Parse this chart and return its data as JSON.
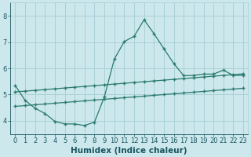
{
  "xlabel": "Humidex (Indice chaleur)",
  "bg_color": "#cce8ec",
  "grid_color": "#aad0d8",
  "line_color": "#2a7a6e",
  "xlim": [
    -0.5,
    23.5
  ],
  "ylim": [
    3.5,
    8.5
  ],
  "xticks": [
    0,
    1,
    2,
    3,
    4,
    5,
    6,
    7,
    8,
    9,
    10,
    11,
    12,
    13,
    14,
    15,
    16,
    17,
    18,
    19,
    20,
    21,
    22,
    23
  ],
  "yticks": [
    4,
    5,
    6,
    7,
    8
  ],
  "line1_x": [
    0,
    1,
    2,
    3,
    4,
    5,
    6,
    7,
    8,
    9,
    10,
    11,
    12,
    13,
    14,
    15,
    16,
    17,
    18,
    19,
    20,
    21,
    22,
    23
  ],
  "line1_y": [
    5.35,
    4.78,
    4.48,
    4.28,
    3.98,
    3.88,
    3.88,
    3.82,
    3.95,
    4.92,
    6.35,
    7.02,
    7.22,
    7.85,
    7.32,
    6.75,
    6.18,
    5.72,
    5.73,
    5.78,
    5.78,
    5.93,
    5.73,
    5.73
  ],
  "line2_x": [
    0,
    1,
    2,
    3,
    4,
    5,
    6,
    7,
    8,
    9,
    10,
    11,
    12,
    13,
    14,
    15,
    16,
    17,
    18,
    19,
    20,
    21,
    22,
    23
  ],
  "line2_y": [
    5.1,
    5.13,
    5.16,
    5.19,
    5.22,
    5.25,
    5.28,
    5.31,
    5.34,
    5.37,
    5.4,
    5.43,
    5.46,
    5.49,
    5.52,
    5.55,
    5.58,
    5.61,
    5.64,
    5.67,
    5.7,
    5.73,
    5.76,
    5.79
  ],
  "line3_x": [
    0,
    1,
    2,
    3,
    4,
    5,
    6,
    7,
    8,
    9,
    10,
    11,
    12,
    13,
    14,
    15,
    16,
    17,
    18,
    19,
    20,
    21,
    22,
    23
  ],
  "line3_y": [
    4.55,
    4.58,
    4.61,
    4.64,
    4.67,
    4.7,
    4.73,
    4.76,
    4.79,
    4.82,
    4.85,
    4.88,
    4.91,
    4.94,
    4.97,
    5.0,
    5.03,
    5.06,
    5.09,
    5.12,
    5.15,
    5.18,
    5.21,
    5.24
  ],
  "font_color": "#1a5560",
  "tick_fontsize": 6,
  "label_fontsize": 7.5
}
